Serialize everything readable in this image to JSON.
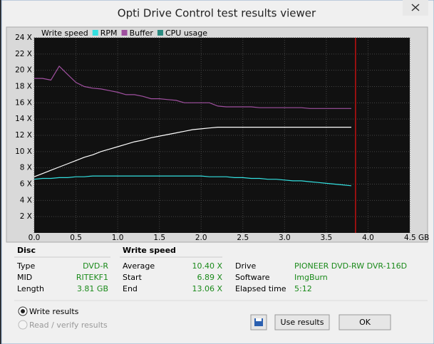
{
  "window": {
    "title": "Opti Drive Control test results viewer"
  },
  "chart_data": {
    "type": "line",
    "x": [
      0,
      0.1,
      0.2,
      0.3,
      0.4,
      0.5,
      0.6,
      0.7,
      0.8,
      0.9,
      1.0,
      1.1,
      1.2,
      1.3,
      1.4,
      1.5,
      1.6,
      1.7,
      1.8,
      1.9,
      2.0,
      2.1,
      2.2,
      2.3,
      2.4,
      2.5,
      2.6,
      2.7,
      2.8,
      2.9,
      3.0,
      3.1,
      3.2,
      3.3,
      3.4,
      3.5,
      3.6,
      3.7,
      3.8
    ],
    "series": [
      {
        "name": "Write speed",
        "color": "#ffffff",
        "values": [
          6.9,
          7.3,
          7.7,
          8.1,
          8.5,
          8.9,
          9.3,
          9.6,
          10.0,
          10.3,
          10.6,
          10.9,
          11.2,
          11.4,
          11.7,
          11.9,
          12.1,
          12.3,
          12.5,
          12.7,
          12.8,
          12.9,
          13.0,
          13.0,
          13.0,
          13.0,
          13.0,
          13.0,
          13.0,
          13.0,
          13.0,
          13.0,
          13.0,
          13.0,
          13.0,
          13.0,
          13.0,
          13.0,
          13.0
        ]
      },
      {
        "name": "RPM",
        "color": "#33e0e0",
        "values": [
          6.6,
          6.7,
          6.7,
          6.8,
          6.8,
          6.9,
          6.9,
          7.0,
          7.0,
          7.0,
          7.0,
          7.0,
          7.0,
          7.0,
          7.0,
          7.0,
          7.0,
          7.0,
          7.0,
          7.0,
          7.0,
          6.9,
          6.9,
          6.9,
          6.8,
          6.8,
          6.7,
          6.7,
          6.6,
          6.6,
          6.5,
          6.4,
          6.4,
          6.3,
          6.2,
          6.1,
          6.0,
          5.9,
          5.8
        ]
      },
      {
        "name": "Buffer",
        "color": "#a050a0",
        "values": [
          19.0,
          19.0,
          18.8,
          20.5,
          19.5,
          18.5,
          18.0,
          17.8,
          17.7,
          17.5,
          17.3,
          17.0,
          17.0,
          16.8,
          16.5,
          16.5,
          16.4,
          16.3,
          16.0,
          16.0,
          16.0,
          16.0,
          15.6,
          15.5,
          15.5,
          15.5,
          15.5,
          15.4,
          15.4,
          15.4,
          15.4,
          15.4,
          15.4,
          15.3,
          15.3,
          15.3,
          15.3,
          15.3,
          15.3
        ]
      },
      {
        "name": "CPU usage",
        "color": "#2a8a80",
        "values": [
          null,
          null,
          null,
          null,
          null,
          null,
          null,
          null,
          null,
          null,
          null,
          null,
          null,
          null,
          null,
          null,
          null,
          null,
          null,
          null,
          null,
          null,
          null,
          null,
          null,
          null,
          null,
          null,
          null,
          null,
          null,
          null,
          null,
          null,
          null,
          null,
          null,
          null,
          null
        ]
      }
    ],
    "marker_x": 3.85,
    "marker_color": "#c01010",
    "xlim": [
      0,
      4.5
    ],
    "xticks": [
      {
        "value": 0,
        "label": "0.0"
      },
      0.5,
      {
        "value": 1,
        "label": "1.0"
      },
      1.5,
      {
        "value": 2,
        "label": "2.0"
      },
      2.5,
      {
        "value": 3,
        "label": "3.0"
      },
      3.5,
      {
        "value": 4,
        "label": "4.0"
      },
      {
        "value": 4.5,
        "label": "4.5 GB"
      }
    ],
    "ylim": [
      0,
      24
    ],
    "yticks": [
      {
        "value": 2,
        "label": "2 X"
      },
      {
        "value": 4,
        "label": "4 X"
      },
      {
        "value": 6,
        "label": "6 X"
      },
      {
        "value": 8,
        "label": "8 X"
      },
      {
        "value": 10,
        "label": "10 X"
      },
      {
        "value": 12,
        "label": "12 X"
      },
      {
        "value": 14,
        "label": "14 X"
      },
      {
        "value": 16,
        "label": "16 X"
      },
      {
        "value": 18,
        "label": "18 X"
      },
      {
        "value": 20,
        "label": "20 X"
      },
      {
        "value": 22,
        "label": "22 X"
      },
      {
        "value": 24,
        "label": "24 X"
      }
    ],
    "grid": true
  },
  "info": {
    "disc": {
      "heading": "Disc",
      "rows": [
        [
          "Type",
          "DVD-R"
        ],
        [
          "MID",
          "RITEKF1"
        ],
        [
          "Length",
          "3.81 GB"
        ]
      ]
    },
    "speed": {
      "heading": "Write speed",
      "rows": [
        [
          "Average",
          "10.40 X"
        ],
        [
          "Start",
          "6.89 X"
        ],
        [
          "End",
          "13.06 X"
        ]
      ]
    },
    "drive": {
      "rows": [
        [
          "Drive",
          "PIONEER  DVD-RW  DVR-116D"
        ],
        [
          "Software",
          "ImgBurn"
        ],
        [
          "Elapsed time",
          "5:12"
        ]
      ]
    }
  },
  "options": [
    "Write results",
    "Read / verify results"
  ],
  "buttons": [
    "Use results",
    "OK"
  ]
}
